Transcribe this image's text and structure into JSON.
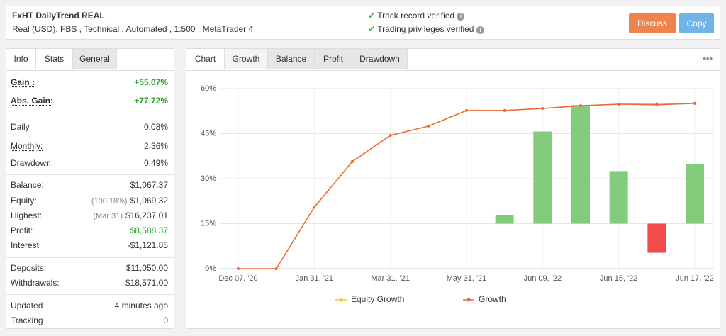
{
  "header": {
    "title": "FxHT DailyTrend REAL",
    "subtitle": [
      "Real (USD), ",
      "FBS",
      " , Technical , Automated , 1:500 , MetaTrader 4"
    ]
  },
  "verification": [
    "Track record verified",
    "Trading privileges verified"
  ],
  "buttons": [
    "Discuss",
    "Copy"
  ],
  "stats": {
    "tabs": [
      "Info",
      "Stats",
      "General"
    ],
    "groups": [
      [
        {
          "label": "Gain :",
          "value": "+55.07%"
        },
        {
          "label": "Abs. Gain:",
          "value": "+77.72%"
        }
      ],
      [
        {
          "label": "Daily",
          "value": "0.08%"
        },
        {
          "label": "Monthly:",
          "value": "2.36%"
        },
        {
          "label": "Drawdown:",
          "value": "0.49%"
        }
      ],
      [
        {
          "label": "Balance:",
          "value": "$1,067.37"
        },
        {
          "label": "Equity:",
          "note": "(100.18%)",
          "value": "$1,069.32"
        },
        {
          "label": "Highest:",
          "note": "(Mar 31)",
          "value": "$16,237.01"
        },
        {
          "label": "Profit:",
          "value": "$8,588.37"
        },
        {
          "label": "Interest",
          "value": "-$1,121.85"
        }
      ],
      [
        {
          "label": "Deposits:",
          "value": "$11,050.00"
        },
        {
          "label": "Withdrawals:",
          "value": "$18,571.00"
        }
      ],
      [
        {
          "label": "Updated",
          "value": "4 minutes ago"
        },
        {
          "label": "Tracking",
          "value": "0"
        }
      ]
    ]
  },
  "chart_tabs": [
    "Chart",
    "Growth",
    "Balance",
    "Profit",
    "Drawdown"
  ],
  "chart_data": {
    "type": "line",
    "categories": [
      "Dec 07, '20",
      null,
      "Jan 31, '21",
      null,
      "Mar 31, '21",
      null,
      "May 31, '21",
      null,
      "Jun 09, '22",
      null,
      "Jun 15, '22",
      null,
      "Jun 17, '22"
    ],
    "series": [
      {
        "name": "Equity Growth",
        "color": "#f5c242",
        "values": [
          0,
          0,
          20.5,
          35.7,
          44.4,
          47.5,
          52.7,
          52.7,
          53.4,
          54.3,
          54.8,
          55.0,
          55.1
        ]
      },
      {
        "name": "Growth",
        "color": "#f0683a",
        "values": [
          0,
          0,
          20.5,
          35.7,
          44.4,
          47.5,
          52.7,
          52.7,
          53.4,
          54.3,
          54.8,
          54.6,
          55.07
        ]
      },
      {
        "type": "bar",
        "axis": "y2",
        "color": "#82cc7c",
        "negative_color": "#f24b4b",
        "values": [
          null,
          null,
          null,
          null,
          null,
          null,
          null,
          2.8,
          30.7,
          39.5,
          17.5,
          -9.7,
          19.8
        ]
      }
    ],
    "ylim": [
      0,
      60
    ],
    "yticks": [
      {
        "value": 0,
        "label": "0%"
      },
      {
        "value": 15,
        "label": "15%"
      },
      {
        "value": 30,
        "label": "30%"
      },
      {
        "value": 45,
        "label": "45%"
      },
      {
        "value": 60,
        "label": "60%"
      }
    ],
    "y2lim": [
      -15,
      45
    ],
    "grid": true,
    "legend": "bottom"
  }
}
